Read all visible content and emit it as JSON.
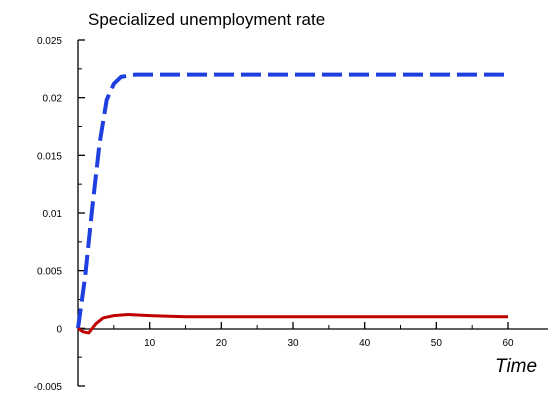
{
  "chart_data": {
    "type": "line",
    "title": "Specialized unemployment rate",
    "xlabel": "Time",
    "ylabel": "",
    "xlim": [
      0,
      60
    ],
    "ylim": [
      -0.005,
      0.025
    ],
    "x_ticks": [
      "10",
      "20",
      "30",
      "40",
      "50",
      "60"
    ],
    "y_ticks": [
      "0.025",
      "0.02",
      "0.015",
      "0.01",
      "0.005",
      "0",
      "-0.005"
    ],
    "grid": false,
    "series": [
      {
        "color": "#1f3fe0",
        "style": "dashed",
        "points": [
          [
            0,
            0
          ],
          [
            1,
            0.0045
          ],
          [
            2,
            0.0105
          ],
          [
            3,
            0.016
          ],
          [
            4,
            0.0198
          ],
          [
            5,
            0.0212
          ],
          [
            6,
            0.0218
          ],
          [
            8,
            0.022
          ],
          [
            12,
            0.022
          ],
          [
            20,
            0.022
          ],
          [
            30,
            0.022
          ],
          [
            40,
            0.022
          ],
          [
            50,
            0.022
          ],
          [
            60,
            0.022
          ]
        ]
      },
      {
        "color": "#c00000",
        "style": "solid",
        "points": [
          [
            0,
            0
          ],
          [
            0.7,
            -0.0003
          ],
          [
            1.5,
            -0.0004
          ],
          [
            2.5,
            0.0004
          ],
          [
            3.5,
            0.0009
          ],
          [
            5,
            0.0011
          ],
          [
            7,
            0.0012
          ],
          [
            10,
            0.0011
          ],
          [
            15,
            0.001
          ],
          [
            20,
            0.001
          ],
          [
            30,
            0.001
          ],
          [
            40,
            0.001
          ],
          [
            50,
            0.001
          ],
          [
            60,
            0.001
          ]
        ]
      }
    ]
  }
}
